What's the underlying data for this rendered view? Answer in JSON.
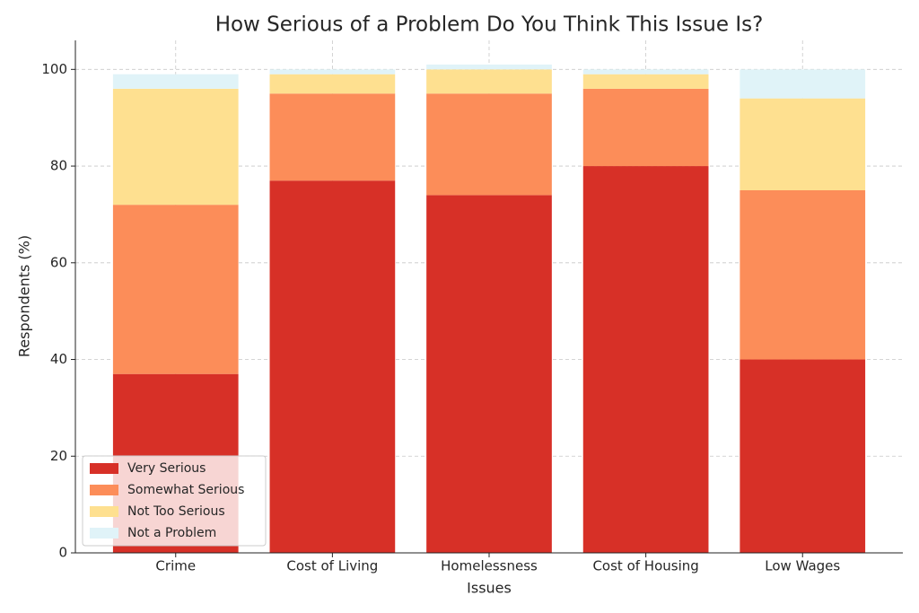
{
  "chart_data": {
    "type": "stacked_bar",
    "title": "How Serious of a Problem Do You Think This Issue Is?",
    "x_label": "Issues",
    "y_label": "Respondents (%)",
    "categories": [
      "Crime",
      "Cost of Living",
      "Homelessness",
      "Cost of Housing",
      "Low Wages"
    ],
    "series": [
      {
        "name": "Very Serious",
        "color": "#d73027",
        "values": [
          37,
          77,
          74,
          80,
          40
        ]
      },
      {
        "name": "Somewhat Serious",
        "color": "#fc8d59",
        "values": [
          35,
          18,
          21,
          16,
          35
        ]
      },
      {
        "name": "Not Too Serious",
        "color": "#fee090",
        "values": [
          24,
          4,
          5,
          3,
          19
        ]
      },
      {
        "name": "Not a Problem",
        "color": "#e0f3f8",
        "values": [
          3,
          1,
          1,
          1,
          6
        ]
      }
    ],
    "ylim": [
      0,
      106
    ],
    "yticks": [
      0,
      20,
      40,
      60,
      80,
      100
    ],
    "grid": true,
    "legend": "lower left"
  }
}
